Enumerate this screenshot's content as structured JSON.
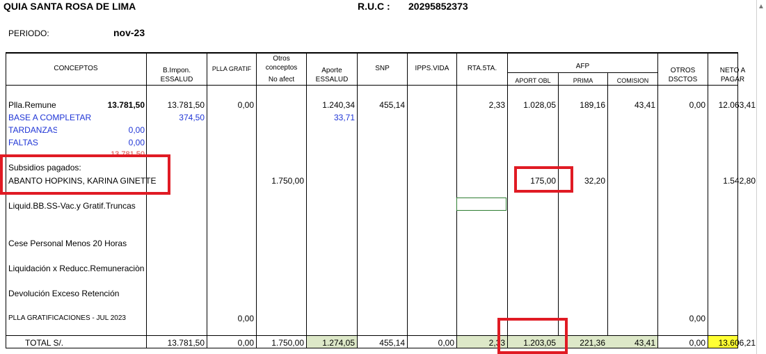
{
  "header": {
    "company": "QUIA SANTA ROSA DE LIMA",
    "ruc_label": "R.U.C  :",
    "ruc_value": "20295852373",
    "period_label": "PERIODO:",
    "period_value": "nov-23"
  },
  "columns": {
    "conceptos": "CONCEPTOS",
    "bimpon_1": "B.Impon.",
    "bimpon_2": "ESSALUD",
    "plla_gratif": "PLLA GRATIF",
    "otros_1": "Otros",
    "otros_2": "conceptos",
    "otros_3": "No afect",
    "aporte_1": "Aporte",
    "aporte_2": "ESSALUD",
    "snp": "SNP",
    "ipps": "IPPS.VIDA",
    "rta": "RTA.5TA.",
    "afp": "AFP",
    "afp_aport": "APORT OBL",
    "afp_prima": "PRIMA",
    "afp_comision": "COMISION",
    "otros_dsctos_1": "OTROS",
    "otros_dsctos_2": "DSCTOS",
    "neto_1": "NETO A",
    "neto_2": "PAGAR"
  },
  "rows": {
    "plla": {
      "label": "Plla.Remune",
      "amount": "13.781,50",
      "bimpon": "13.781,50",
      "plla_gratif": "0,00",
      "aporte": "1.240,34",
      "snp": "455,14",
      "rta": "2,33",
      "aport_obl": "1.028,05",
      "prima": "189,16",
      "comision": "43,41",
      "otros_dsctos": "0,00",
      "neto": "12.063,41"
    },
    "base": {
      "label": "BASE A COMPLETAR",
      "bimpon": "374,50",
      "aporte": "33,71"
    },
    "tardanzas": {
      "label": "TARDANZAS",
      "amount": "0,00"
    },
    "faltas": {
      "label": "FALTAS",
      "amount": "0,00"
    },
    "hidden_total": "13.781,50",
    "subsidios": {
      "label": "Subsidios pagados:",
      "name": "ABANTO HOPKINS, KARINA GINETTE",
      "otros": "1.750,00",
      "aport_obl": "175,00",
      "prima": "32,20",
      "neto": "1.542,80"
    },
    "liquid": {
      "label": "Liquid.BB.SS-Vac.y Gratif.Truncas"
    },
    "cese": {
      "label": "Cese Personal Menos 20 Horas"
    },
    "liquidacion": {
      "label": "Liquidación x Reducc.Remuneraciòn"
    },
    "devolucion": {
      "label": "Devolución Exceso Retención"
    },
    "gratif": {
      "label": "PLLA  GRATIFICACIONES - JUL 2023",
      "plla_gratif": "0,00",
      "otros_dsctos": "0,00"
    },
    "total": {
      "label": "TOTAL    S/.",
      "bimpon": "13.781,50",
      "plla_gratif": "0,00",
      "otros": "1.750,00",
      "aporte": "1.274,05",
      "snp": "455,14",
      "ipps": "0,00",
      "rta": "2,33",
      "aport_obl": "1.203,05",
      "prima": "221,36",
      "comision": "43,41",
      "otros_dsctos": "0,00",
      "neto": "13.606,21"
    }
  },
  "colors": {
    "highlight_box": "#e01b24",
    "total_fill": "#dde8c8",
    "neto_fill": "#ffff33",
    "blue_text": "#1f35d6"
  }
}
